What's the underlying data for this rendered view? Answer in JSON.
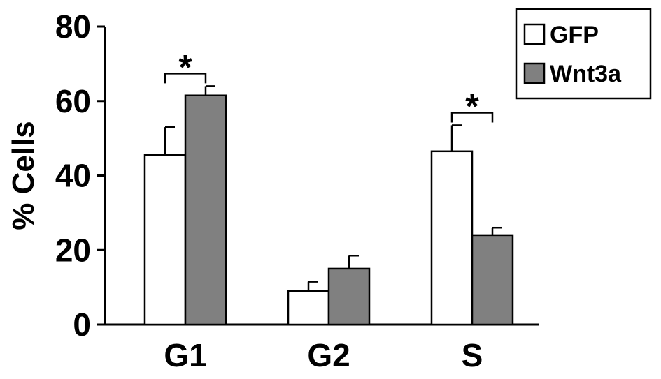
{
  "chart_data": {
    "type": "bar",
    "categories": [
      "G1",
      "G2",
      "S"
    ],
    "series": [
      {
        "name": "GFP",
        "values": [
          45.5,
          9,
          46.5
        ],
        "errors": [
          7.5,
          2.5,
          7
        ],
        "color": "#ffffff"
      },
      {
        "name": "Wnt3a",
        "values": [
          61.5,
          15,
          24
        ],
        "errors": [
          2.5,
          3.5,
          2
        ],
        "color": "#808080"
      }
    ],
    "ylabel": "% Cells",
    "xlabel": "",
    "ylim": [
      0,
      80
    ],
    "yticks": [
      "0",
      "20",
      "40",
      "60",
      "80"
    ],
    "legend_position": "top-right",
    "grid": false,
    "significance": [
      {
        "category": "G1",
        "label": "*"
      },
      {
        "category": "S",
        "label": "*"
      }
    ]
  }
}
